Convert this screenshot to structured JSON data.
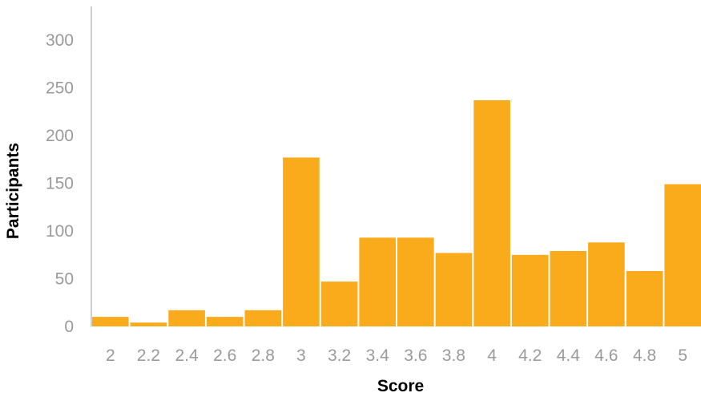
{
  "chart_data": {
    "type": "bar",
    "title": "",
    "xlabel": "Score",
    "ylabel": "Participants",
    "categories": [
      "2",
      "2.2",
      "2.4",
      "2.6",
      "2.8",
      "3",
      "3.2",
      "3.4",
      "3.6",
      "3.8",
      "4",
      "4.2",
      "4.4",
      "4.6",
      "4.8",
      "5"
    ],
    "values": [
      10,
      4,
      17,
      10,
      17,
      177,
      47,
      93,
      93,
      77,
      237,
      75,
      79,
      88,
      58,
      149
    ],
    "ylim": [
      0,
      300
    ],
    "yticks": [
      "0",
      "50",
      "100",
      "150",
      "200",
      "250",
      "300"
    ],
    "grid": false,
    "legend": "none",
    "bar_color": "#FAAB1B"
  }
}
